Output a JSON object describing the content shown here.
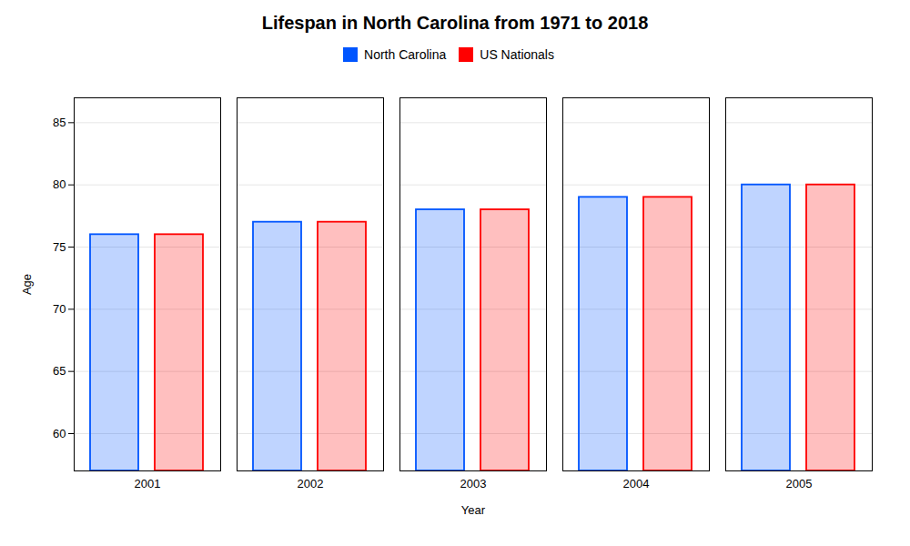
{
  "chart_data": {
    "type": "bar",
    "title": "Lifespan in North Carolina from 1971 to 2018",
    "xlabel": "Year",
    "ylabel": "Age",
    "categories": [
      "2001",
      "2002",
      "2003",
      "2004",
      "2005"
    ],
    "series": [
      {
        "name": "North Carolina",
        "color": "#0055ff",
        "values": [
          76,
          77,
          78,
          79,
          80
        ]
      },
      {
        "name": "US Nationals",
        "color": "#ff0000",
        "values": [
          76,
          77,
          78,
          79,
          80
        ]
      }
    ],
    "ylim": [
      57,
      87
    ],
    "yticks": [
      60,
      65,
      70,
      75,
      80,
      85
    ],
    "grid": true,
    "legend": "top"
  }
}
